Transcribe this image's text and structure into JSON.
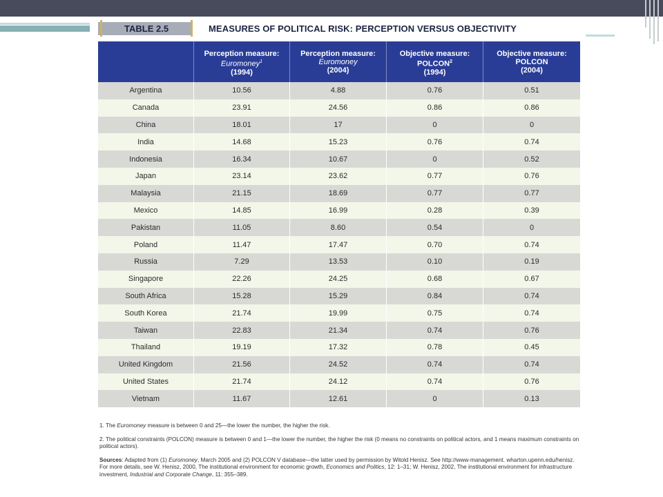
{
  "table": {
    "label": "TABLE 2.5",
    "title": "MEASURES OF POLITICAL RISK: PERCEPTION VERSUS OBJECTIVITY",
    "headers": [
      {
        "line1": "",
        "line2": "",
        "line3": ""
      },
      {
        "line1": "Perception measure:",
        "line2": "Euromoney",
        "sup": "1",
        "line3": "(1994)"
      },
      {
        "line1": "Perception measure:",
        "line2": "Euromoney",
        "sup": "",
        "line3": "(2004)"
      },
      {
        "line1": "Objective measure:",
        "line2": "POLCON",
        "sup": "2",
        "line3": "(1994)"
      },
      {
        "line1": "Objective measure:",
        "line2": "POLCON",
        "sup": "",
        "line3": "(2004)"
      }
    ],
    "rows": [
      [
        "Argentina",
        "10.56",
        "4.88",
        "0.76",
        "0.51"
      ],
      [
        "Canada",
        "23.91",
        "24.56",
        "0.86",
        "0.86"
      ],
      [
        "China",
        "18.01",
        "17",
        "0",
        "0"
      ],
      [
        "India",
        "14.68",
        "15.23",
        "0.76",
        "0.74"
      ],
      [
        "Indonesia",
        "16.34",
        "10.67",
        "0",
        "0.52"
      ],
      [
        "Japan",
        "23.14",
        "23.62",
        "0.77",
        "0.76"
      ],
      [
        "Malaysia",
        "21.15",
        "18.69",
        "0.77",
        "0.77"
      ],
      [
        "Mexico",
        "14.85",
        "16.99",
        "0.28",
        "0.39"
      ],
      [
        "Pakistan",
        "11.05",
        "8.60",
        "0.54",
        "0"
      ],
      [
        "Poland",
        "11.47",
        "17.47",
        "0.70",
        "0.74"
      ],
      [
        "Russia",
        "7.29",
        "13.53",
        "0.10",
        "0.19"
      ],
      [
        "Singapore",
        "22.26",
        "24.25",
        "0.68",
        "0.67"
      ],
      [
        "South Africa",
        "15.28",
        "15.29",
        "0.84",
        "0.74"
      ],
      [
        "South Korea",
        "21.74",
        "19.99",
        "0.75",
        "0.74"
      ],
      [
        "Taiwan",
        "22.83",
        "21.34",
        "0.74",
        "0.76"
      ],
      [
        "Thailand",
        "19.19",
        "17.32",
        "0.78",
        "0.45"
      ],
      [
        "United Kingdom",
        "21.56",
        "24.52",
        "0.74",
        "0.74"
      ],
      [
        "United States",
        "21.74",
        "24.12",
        "0.74",
        "0.76"
      ],
      [
        "Vietnam",
        "11.67",
        "12.61",
        "0",
        "0.13"
      ]
    ]
  },
  "footnotes": {
    "note1_prefix": "1. The ",
    "note1_italic": "Euromoney",
    "note1_suffix": " measure is between 0 and 25—the lower the number, the higher the risk.",
    "note2": "2. The political constraints (POLCON) measure is between 0 and 1—the lower the number, the higher the risk (0 means no constraints on political actors, and 1 means maximum constraints on political actors).",
    "sources_label": "Sources",
    "sources_a": ": Adapted from (1) ",
    "sources_a_italic": "Euromoney",
    "sources_b": ", March 2005 and (2) POLCON V database—the latter used by permission by Witold Henisz. See http://www-management. wharton.upenn.edu/henisz. For more details, see W. Henisz, 2000, The institutional environment for economic growth, ",
    "sources_b_italic": "Economics and Politics",
    "sources_c": ", 12: 1–31; W. Henisz, 2002, The institutional environment for infrastructure investment, ",
    "sources_c_italic": "Industrial and Corporate Change",
    "sources_d": ", 11: 355–389."
  },
  "colors": {
    "header_bg": "#2a3d96",
    "row_odd": "#d8d9d5",
    "row_even": "#f3f7ea",
    "slide_bar": "#474b5c",
    "accent_teal": "#86b0b3"
  }
}
